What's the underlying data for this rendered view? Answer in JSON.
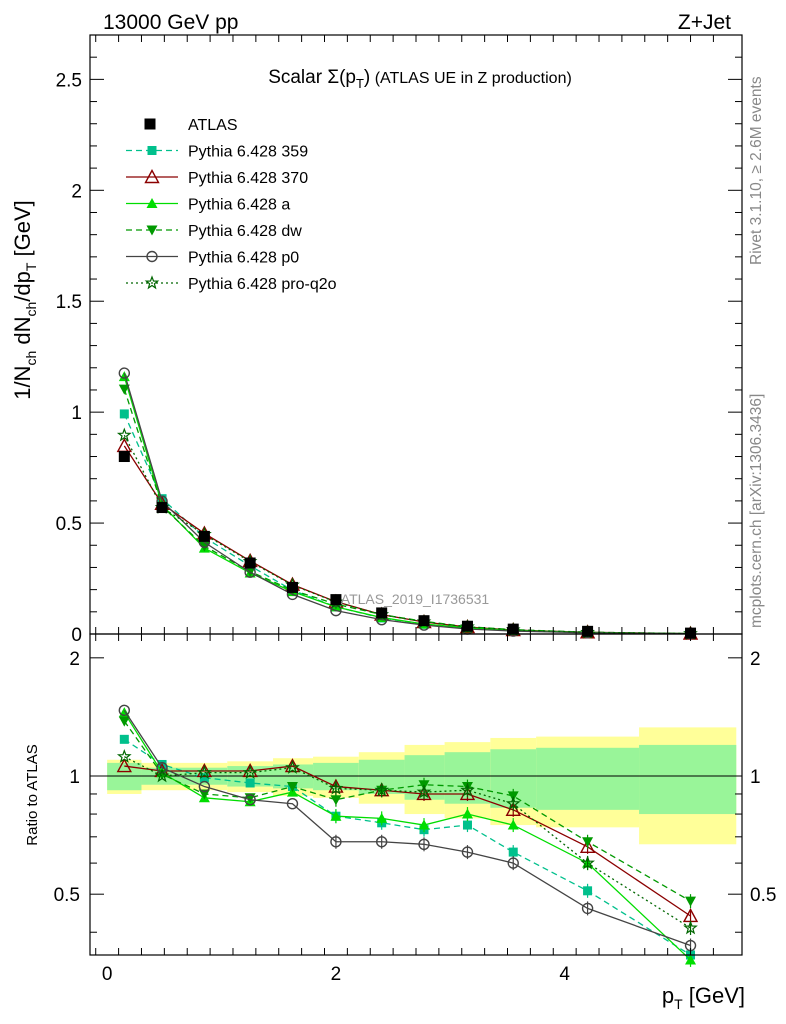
{
  "header": {
    "left": "13000 GeV pp",
    "right": "Z+Jet"
  },
  "side_text": {
    "rivet": "Rivet 3.1.10, ≥ 2.6M events",
    "mcplots": "mcplots.cern.ch [arXiv:1306.3436]"
  },
  "chart_data": {
    "type": "line",
    "title": "Scalar Σ(p_T) (ATLAS UE in Z production)",
    "watermark": "ATLAS_2019_I1736531",
    "xlabel": "p_T [GeV]",
    "ylabel": "1/N_ch dN_ch/dp_T [GeV]",
    "ratio_ylabel": "Ratio to ATLAS",
    "xlim": [
      -0.15,
      5.55
    ],
    "ylim": [
      0,
      2.7
    ],
    "ratio_ylim": [
      0.35,
      2.3
    ],
    "x_ticks": [
      "0",
      "2",
      "4"
    ],
    "y_ticks": [
      "0",
      "0.5",
      "1",
      "1.5",
      "2",
      "2.5"
    ],
    "ratio_ticks": [
      "0.5",
      "1",
      "2"
    ],
    "x": [
      0.15,
      0.48,
      0.85,
      1.25,
      1.62,
      2.0,
      2.4,
      2.77,
      3.15,
      3.55,
      4.2,
      5.1
    ],
    "bin_edges": [
      0.0,
      0.3,
      0.65,
      1.05,
      1.45,
      1.8,
      2.2,
      2.6,
      2.95,
      3.35,
      3.75,
      4.65,
      5.5
    ],
    "data": {
      "name": "ATLAS",
      "values": [
        0.8,
        0.57,
        0.44,
        0.32,
        0.21,
        0.155,
        0.095,
        0.06,
        0.035,
        0.022,
        0.012,
        0.004
      ]
    },
    "band_green": [
      0.08,
      0.05,
      0.05,
      0.06,
      0.07,
      0.08,
      0.1,
      0.13,
      0.15,
      0.17,
      0.18,
      0.2
    ],
    "band_yellow": [
      0.1,
      0.08,
      0.08,
      0.09,
      0.11,
      0.12,
      0.15,
      0.2,
      0.22,
      0.25,
      0.26,
      0.33
    ],
    "series": [
      {
        "name": "Pythia 6.428 359",
        "color": "#00c08c",
        "dash": "6,4",
        "marker": "square",
        "ratio": [
          1.24,
          1.07,
          0.99,
          0.96,
          0.94,
          0.79,
          0.76,
          0.73,
          0.75,
          0.64,
          0.51,
          0.35
        ]
      },
      {
        "name": "Pythia 6.428 370",
        "color": "#8b0000",
        "dash": "",
        "marker": "triangle-open",
        "ratio": [
          1.06,
          1.03,
          1.03,
          1.03,
          1.06,
          0.94,
          0.92,
          0.9,
          0.9,
          0.82,
          0.66,
          0.44
        ]
      },
      {
        "name": "Pythia 6.428 a",
        "color": "#00dd00",
        "dash": "",
        "marker": "triangle",
        "ratio": [
          1.45,
          1.02,
          0.88,
          0.86,
          0.91,
          0.79,
          0.78,
          0.75,
          0.8,
          0.75,
          0.6,
          0.34
        ]
      },
      {
        "name": "Pythia 6.428 dw",
        "color": "#009900",
        "dash": "6,4",
        "marker": "triangle-down",
        "ratio": [
          1.38,
          1.01,
          0.9,
          0.88,
          0.94,
          0.87,
          0.92,
          0.95,
          0.94,
          0.89,
          0.68,
          0.48
        ]
      },
      {
        "name": "Pythia 6.428 p0",
        "color": "#444444",
        "dash": "",
        "marker": "circle-open",
        "ratio": [
          1.47,
          1.05,
          0.94,
          0.87,
          0.85,
          0.68,
          0.68,
          0.67,
          0.64,
          0.6,
          0.46,
          0.37
        ]
      },
      {
        "name": "Pythia 6.428 pro-q2o",
        "color": "#006600",
        "dash": "2,3",
        "marker": "star",
        "ratio": [
          1.12,
          1.0,
          1.02,
          1.02,
          1.05,
          0.93,
          0.92,
          0.91,
          0.92,
          0.85,
          0.6,
          0.41
        ]
      }
    ]
  }
}
